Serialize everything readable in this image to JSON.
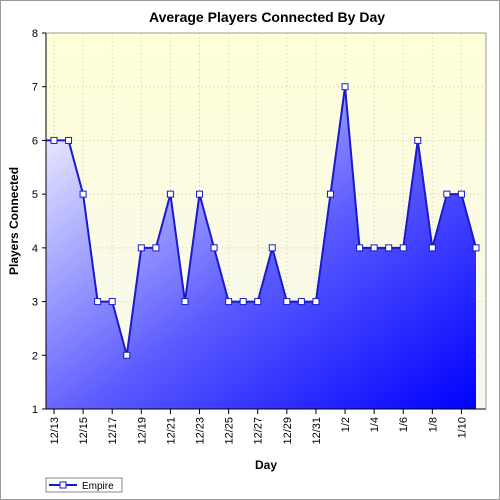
{
  "chart_data": {
    "type": "area",
    "title": "Average Players Connected By Day",
    "xlabel": "Day",
    "ylabel": "Players Connected",
    "ylim": [
      1,
      8
    ],
    "yticks": [
      1,
      2,
      3,
      4,
      5,
      6,
      7,
      8
    ],
    "x": [
      "12/13",
      "12/14",
      "12/15",
      "12/16",
      "12/17",
      "12/18",
      "12/19",
      "12/20",
      "12/21",
      "12/22",
      "12/23",
      "12/24",
      "12/25",
      "12/26",
      "12/27",
      "12/28",
      "12/29",
      "12/30",
      "12/31",
      "1/1",
      "1/2",
      "1/3",
      "1/4",
      "1/5",
      "1/6",
      "1/7",
      "1/8",
      "1/9",
      "1/10",
      "1/11"
    ],
    "xtick_labels": [
      "12/13",
      "12/15",
      "12/17",
      "12/19",
      "12/21",
      "12/23",
      "12/25",
      "12/27",
      "12/29",
      "12/31",
      "1/2",
      "1/4",
      "1/6",
      "1/8",
      "1/10"
    ],
    "series": [
      {
        "name": "Empire",
        "values": [
          6,
          6,
          5,
          3,
          3,
          2,
          4,
          4,
          5,
          3,
          5,
          4,
          3,
          3,
          3,
          4,
          3,
          3,
          3,
          5,
          7,
          4,
          4,
          4,
          4,
          6,
          4,
          5,
          5,
          4
        ]
      }
    ],
    "grid": true,
    "legend_position": "bottom-left",
    "colors": {
      "plot_background": "#ffffdd",
      "line": "#1a1acc",
      "fill_light": "#ffffff",
      "fill_dark": "#0000ff",
      "marker_fill": "#ffffff"
    }
  }
}
